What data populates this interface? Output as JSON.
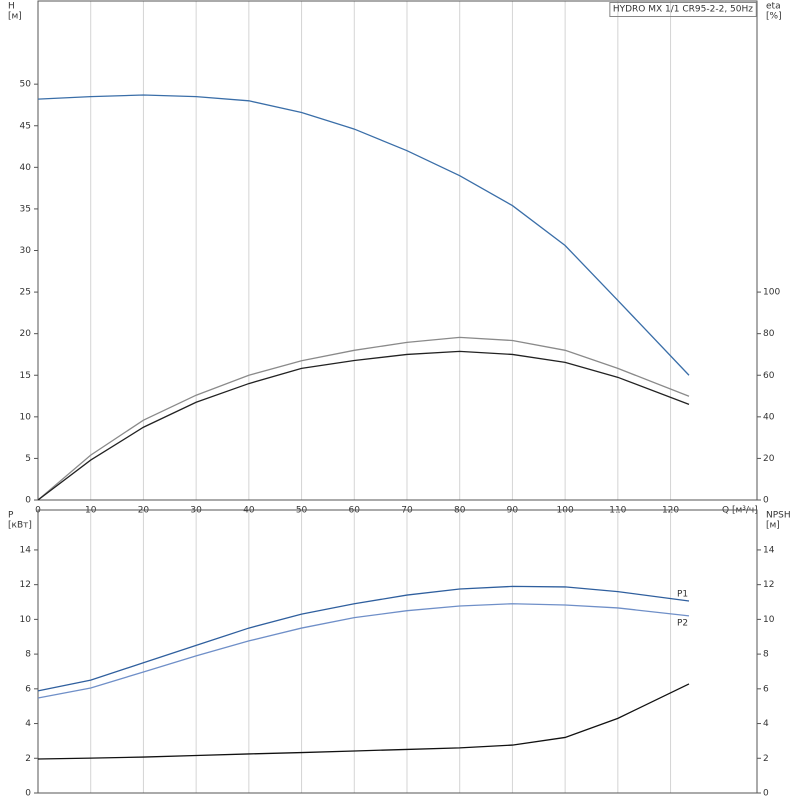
{
  "chart_data": [
    {
      "type": "line",
      "title": "HYDRO MX 1/1 CR95-2-2, 50Hz",
      "ylabel": "H",
      "yunit": "[м]",
      "y2label": "eta",
      "y2unit": "[%]",
      "xlabel": "Q [м³/ч]",
      "x": [
        0,
        10,
        20,
        30,
        40,
        50,
        60,
        70,
        80,
        90,
        100,
        110,
        123.5
      ],
      "xlim": [
        0,
        136.4
      ],
      "xticks": [
        0,
        10,
        20,
        30,
        40,
        50,
        60,
        70,
        80,
        90,
        100,
        110,
        120
      ],
      "ylim": [
        0,
        60
      ],
      "yticks": [
        0,
        5,
        10,
        15,
        20,
        25,
        30,
        35,
        40,
        45,
        50
      ],
      "y2lim": [
        0,
        240
      ],
      "y2ticks": [
        0,
        20,
        40,
        60,
        80,
        100
      ],
      "grid": true,
      "series": [
        {
          "color": "#3a6ea8",
          "values": [
            48.2,
            48.5,
            48.7,
            48.5,
            48.0,
            46.6,
            44.6,
            42.0,
            39.0,
            35.4,
            30.6,
            24.0,
            15.0
          ]
        },
        {
          "color": "#8a8a8a",
          "axis": "y2",
          "values": [
            0,
            21.6,
            38.4,
            50.4,
            60,
            67,
            72,
            75.8,
            78.2,
            76.7,
            72,
            63.3,
            49.9
          ]
        },
        {
          "color": "#222222",
          "axis": "y2",
          "values": [
            0,
            19.2,
            35,
            47,
            56,
            63.3,
            67.1,
            70,
            71.5,
            70,
            66.2,
            59,
            46
          ]
        }
      ]
    },
    {
      "type": "line",
      "ylabel": "P",
      "yunit": "[кВт]",
      "y2label": "NPSH",
      "y2unit": "[м]",
      "x": [
        0,
        10,
        20,
        30,
        40,
        50,
        60,
        70,
        80,
        90,
        100,
        110,
        123.5
      ],
      "xlim": [
        0,
        136.4
      ],
      "xticks": [
        0,
        10,
        20,
        30,
        40,
        50,
        60,
        70,
        80,
        90,
        100,
        110,
        120
      ],
      "ylim": [
        0,
        16.3
      ],
      "yticks": [
        0,
        2,
        4,
        6,
        8,
        10,
        12,
        14
      ],
      "y2lim": [
        0,
        16.3
      ],
      "y2ticks": [
        0,
        2,
        4,
        6,
        8,
        10,
        12,
        14
      ],
      "grid": true,
      "series": [
        {
          "name": "P1",
          "color": "#2f5f9e",
          "values": [
            5.88,
            6.5,
            7.5,
            8.5,
            9.5,
            10.3,
            10.9,
            11.4,
            11.75,
            11.9,
            11.87,
            11.6,
            11.06
          ]
        },
        {
          "name": "P2",
          "color": "#6f8fc8",
          "values": [
            5.47,
            6.05,
            6.97,
            7.9,
            8.76,
            9.5,
            10.1,
            10.5,
            10.77,
            10.9,
            10.83,
            10.66,
            10.2
          ]
        },
        {
          "color": "#111111",
          "axis": "y2",
          "values": [
            1.96,
            2.01,
            2.07,
            2.16,
            2.25,
            2.33,
            2.42,
            2.51,
            2.6,
            2.76,
            3.2,
            4.3,
            6.28
          ]
        }
      ]
    }
  ]
}
